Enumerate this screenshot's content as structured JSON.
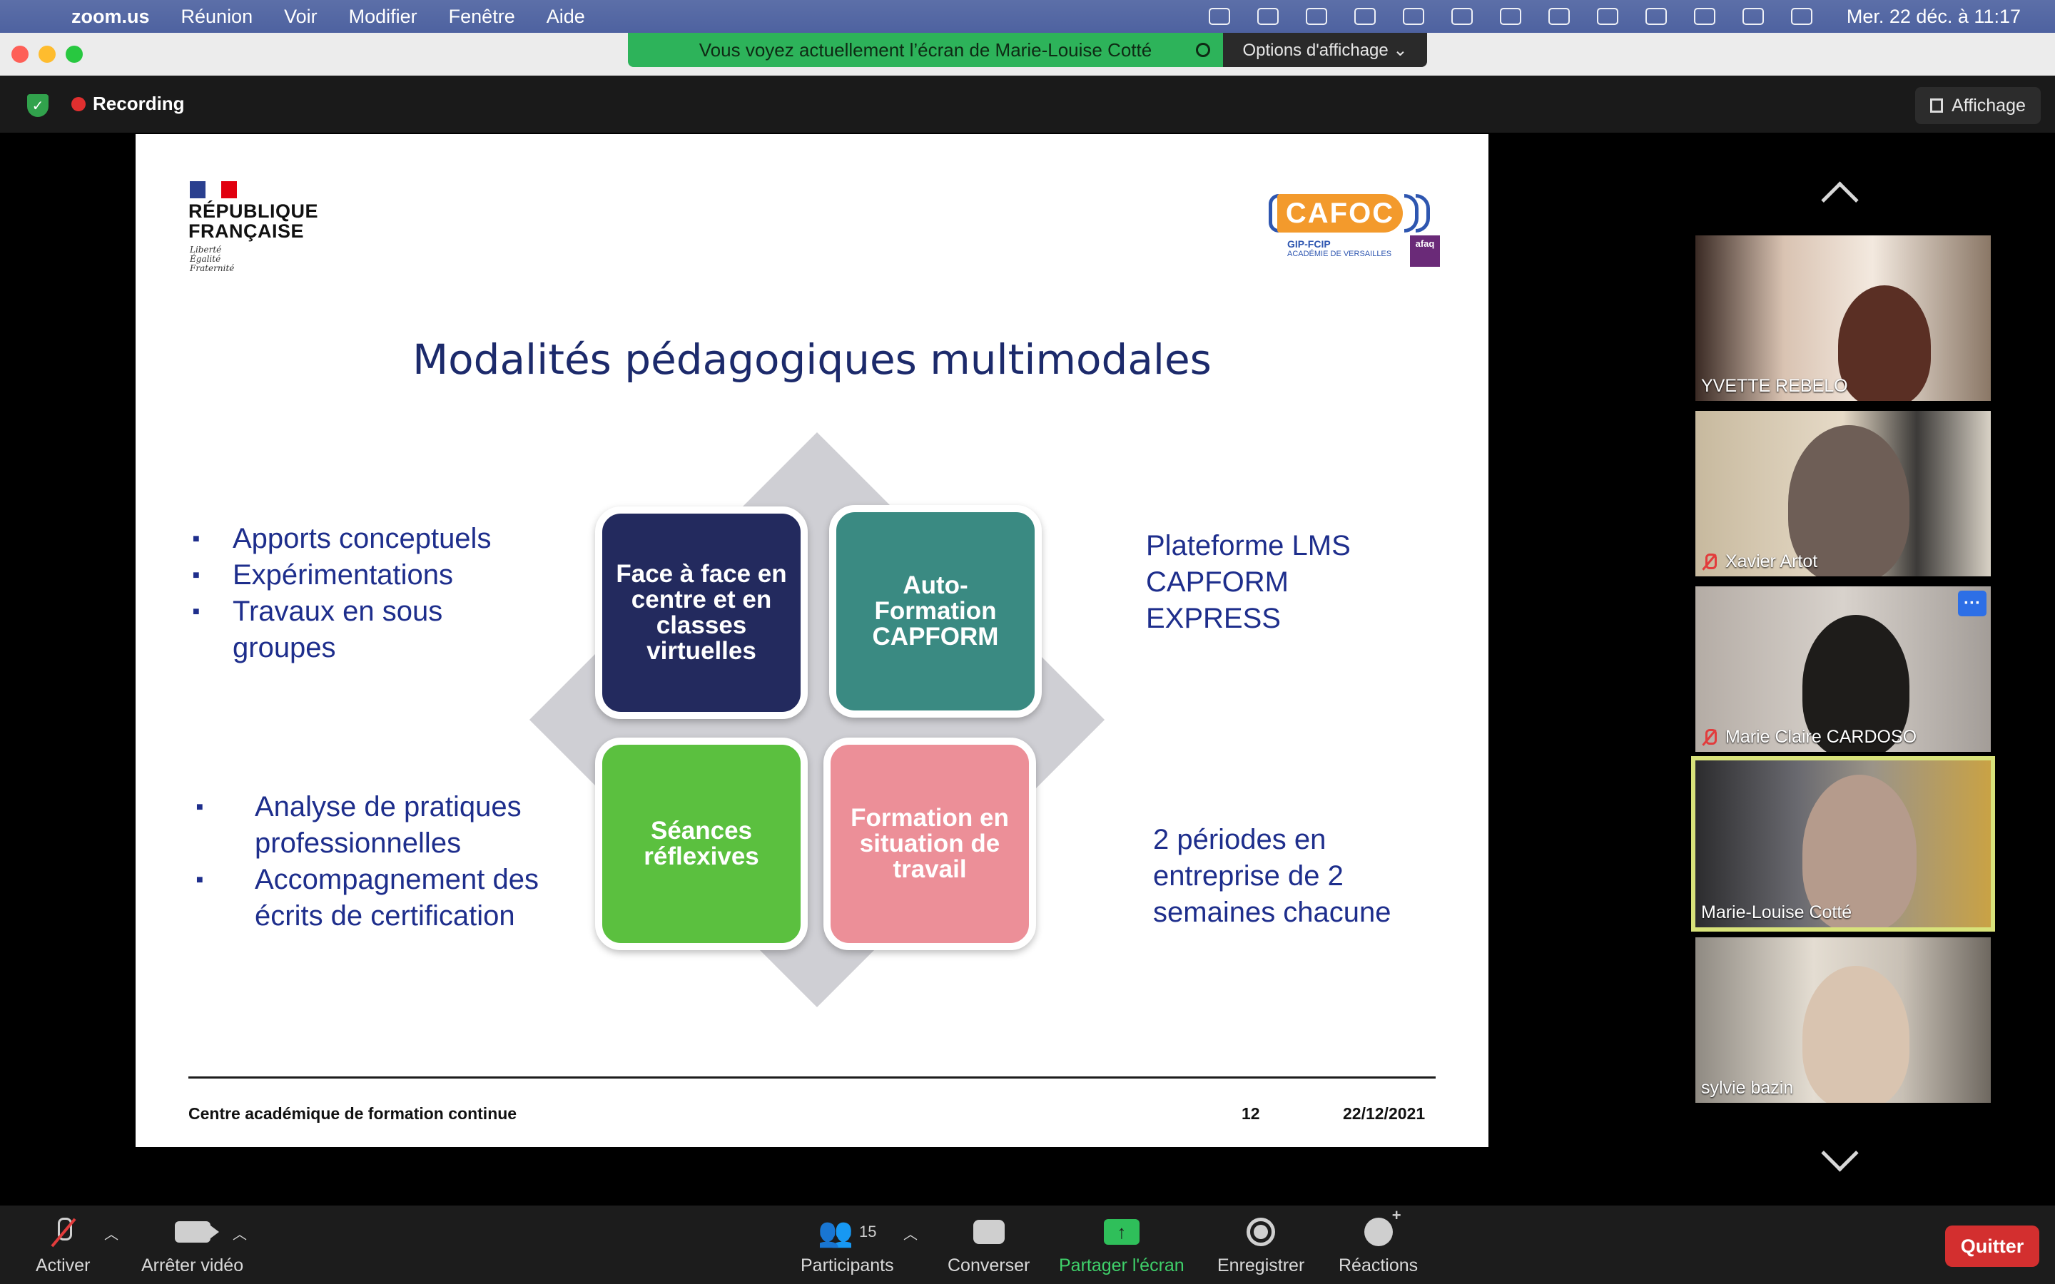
{
  "menubar": {
    "app": "zoom.us",
    "items": [
      "Réunion",
      "Voir",
      "Modifier",
      "Fenêtre",
      "Aide"
    ],
    "clock": "Mer. 22 déc. à  11:17"
  },
  "share_banner": {
    "message": "Vous voyez actuellement l’écran de Marie-Louise Cotté",
    "options": "Options d'affichage ⌄"
  },
  "meeting": {
    "recording": "Recording",
    "view": "Affichage"
  },
  "slide": {
    "republique": "RÉPUBLIQUE\nFRANÇAISE",
    "motto": [
      "Liberté",
      "Égalité",
      "Fraternité"
    ],
    "cafoc": {
      "name": "CAFOC",
      "sub": "GIP-FCIP",
      "sub2": "ACADÉMIE DE VERSAILLES",
      "badge": "afaq"
    },
    "title": "Modalités pédagogiques multimodales",
    "left_top": [
      "Apports conceptuels",
      "Expérimentations",
      "Travaux en sous groupes"
    ],
    "left_bottom": [
      "Analyse de pratiques professionnelles",
      "Accompagnement des écrits de certification"
    ],
    "tiles": {
      "face": "Face à face en centre et en classes virtuelles",
      "auto": "Auto-Formation\nCAPFORM",
      "seance": "Séances réflexives",
      "formation": "Formation en situation de travail"
    },
    "right_top": "Plateforme LMS CAPFORM EXPRESS",
    "right_bottom": "2 périodes en entreprise  de 2 semaines chacune",
    "footer": {
      "center": "Centre académique de formation continue",
      "page": "12",
      "date": "22/12/2021"
    }
  },
  "participants": [
    {
      "name": "YVETTE REBELO",
      "muted": false
    },
    {
      "name": "Xavier Artot",
      "muted": true
    },
    {
      "name": "Marie Claire CARDOSO",
      "muted": true
    },
    {
      "name": "Marie-Louise Cotté",
      "muted": false
    },
    {
      "name": "sylvie bazin",
      "muted": false
    }
  ],
  "more_button": "···",
  "toolbar": {
    "activer": "Activer",
    "video": "Arrêter vidéo",
    "participants": "Participants",
    "participant_count": "15",
    "converser": "Converser",
    "partager": "Partager l'écran",
    "enregistrer": "Enregistrer",
    "reactions": "Réactions",
    "quitter": "Quitter"
  },
  "colors": {
    "share_green": "#2db35a",
    "active_speaker": "#d8e27a",
    "quit_red": "#d32f2f",
    "slide_navy": "#1c2a6b"
  }
}
